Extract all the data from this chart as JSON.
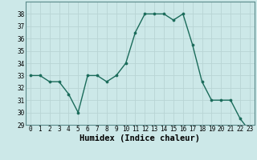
{
  "x": [
    0,
    1,
    2,
    3,
    4,
    5,
    6,
    7,
    8,
    9,
    10,
    11,
    12,
    13,
    14,
    15,
    16,
    17,
    18,
    19,
    20,
    21,
    22,
    23
  ],
  "y": [
    33,
    33,
    32.5,
    32.5,
    31.5,
    30,
    33,
    33,
    32.5,
    33,
    34,
    36.5,
    38,
    38,
    38,
    37.5,
    38,
    35.5,
    32.5,
    31,
    31,
    31,
    29.5,
    28.5
  ],
  "line_color": "#1a6b5a",
  "marker": "o",
  "markersize": 2.2,
  "linewidth": 1.0,
  "bg_color": "#cce8e8",
  "grid_color": "#b8d4d4",
  "xlabel": "Humidex (Indice chaleur)",
  "ylim": [
    29,
    39
  ],
  "xlim": [
    -0.5,
    23.5
  ],
  "yticks": [
    29,
    30,
    31,
    32,
    33,
    34,
    35,
    36,
    37,
    38
  ],
  "xticks": [
    0,
    1,
    2,
    3,
    4,
    5,
    6,
    7,
    8,
    9,
    10,
    11,
    12,
    13,
    14,
    15,
    16,
    17,
    18,
    19,
    20,
    21,
    22,
    23
  ],
  "tick_fontsize": 5.5,
  "xlabel_fontsize": 7.5
}
